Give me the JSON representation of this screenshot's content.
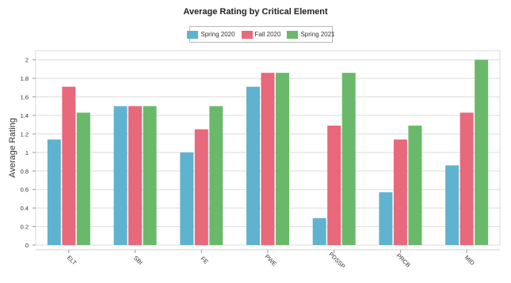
{
  "chart_data": {
    "type": "bar",
    "title": "Average Rating by Critical Element",
    "xlabel": "",
    "ylabel": "Average Rating",
    "ylim": [
      0,
      2.1
    ],
    "yticks": [
      "0",
      "0.2",
      "0.4",
      "0.6",
      "0.8",
      "1",
      "1.2",
      "1.4",
      "1.6",
      "1.8",
      "2"
    ],
    "grid": true,
    "legend_position": "top",
    "categories": [
      "ELT",
      "SBI",
      "FE",
      "PWE",
      "PDSSP",
      "PRCB",
      "MID"
    ],
    "series": [
      {
        "name": "Spring 2020",
        "color": "#5fb3cf",
        "values": [
          1.14,
          1.5,
          1.0,
          1.71,
          0.29,
          0.57,
          0.86
        ]
      },
      {
        "name": "Fall 2020",
        "color": "#e8687c",
        "values": [
          1.71,
          1.5,
          1.25,
          1.86,
          1.29,
          1.14,
          1.43
        ]
      },
      {
        "name": "Spring 2021",
        "color": "#6ab96a",
        "values": [
          1.43,
          1.5,
          1.5,
          1.86,
          1.86,
          1.29,
          2.0
        ]
      }
    ]
  }
}
